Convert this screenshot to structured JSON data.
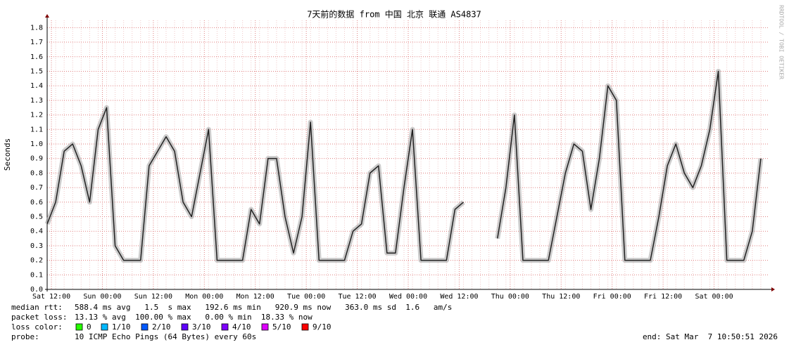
{
  "chart_data": {
    "type": "line",
    "title": "7天前的数据 from 中国 北京 联通 AS4837",
    "y_label": "Seconds",
    "watermark": "RRDTOOL / TOBI OETIKER",
    "xlim": [
      0,
      170
    ],
    "ylim": [
      0,
      1.85
    ],
    "yticks": [
      {
        "value": 0,
        "label": "0.0"
      },
      0.1,
      0.2,
      0.3,
      0.4,
      0.5,
      0.6,
      0.7,
      0.8,
      0.9,
      {
        "value": 1,
        "label": "1.0"
      },
      1.1,
      1.2,
      1.3,
      1.4,
      1.5,
      1.6,
      1.7,
      1.8
    ],
    "xticks": [
      {
        "value": 1,
        "label": "Sat 12:00"
      },
      {
        "value": 13,
        "label": "Sun 00:00"
      },
      {
        "value": 25,
        "label": "Sun 12:00"
      },
      {
        "value": 37,
        "label": "Mon 00:00"
      },
      {
        "value": 49,
        "label": "Mon 12:00"
      },
      {
        "value": 61,
        "label": "Tue 00:00"
      },
      {
        "value": 73,
        "label": "Tue 12:00"
      },
      {
        "value": 85,
        "label": "Wed 00:00"
      },
      {
        "value": 97,
        "label": "Wed 12:00"
      },
      {
        "value": 109,
        "label": "Thu 00:00"
      },
      {
        "value": 121,
        "label": "Thu 12:00"
      },
      {
        "value": 133,
        "label": "Fri 00:00"
      },
      {
        "value": 145,
        "label": "Fri 12:00"
      },
      {
        "value": 157,
        "label": "Sat 00:00"
      }
    ],
    "grid": true,
    "x": [
      0,
      2,
      4,
      6,
      8,
      10,
      12,
      14,
      16,
      18,
      20,
      22,
      24,
      26,
      28,
      30,
      32,
      34,
      36,
      38,
      40,
      42,
      44,
      46,
      48,
      50,
      52,
      54,
      56,
      58,
      60,
      62,
      64,
      66,
      68,
      70,
      72,
      74,
      76,
      78,
      80,
      82,
      84,
      86,
      88,
      90,
      92,
      94,
      96,
      98,
      100,
      102,
      104,
      106,
      108,
      110,
      112,
      114,
      116,
      118,
      120,
      122,
      124,
      126,
      128,
      130,
      132,
      134,
      136,
      138,
      140,
      142,
      144,
      146,
      148,
      150,
      152,
      154,
      156,
      158,
      160,
      162,
      164,
      166,
      168
    ],
    "series": [
      {
        "color": "#222222",
        "values": [
          0.45,
          0.6,
          0.95,
          1.0,
          0.85,
          0.6,
          1.1,
          1.25,
          0.3,
          0.2,
          0.2,
          0.2,
          0.85,
          0.95,
          1.05,
          0.95,
          0.6,
          0.5,
          0.8,
          1.1,
          0.2,
          0.2,
          0.2,
          0.2,
          0.55,
          0.45,
          0.9,
          0.9,
          0.5,
          0.25,
          0.5,
          1.15,
          0.2,
          0.2,
          0.2,
          0.2,
          0.4,
          0.45,
          0.8,
          0.85,
          0.25,
          0.25,
          0.7,
          1.1,
          0.2,
          0.2,
          0.2,
          0.2,
          0.55,
          0.6,
          null,
          null,
          null,
          0.35,
          0.7,
          1.2,
          0.2,
          0.2,
          0.2,
          0.2,
          0.5,
          0.8,
          1.0,
          0.95,
          0.55,
          0.9,
          1.4,
          1.3,
          0.2,
          0.2,
          0.2,
          0.2,
          0.5,
          0.85,
          1.0,
          0.8,
          0.7,
          0.85,
          1.1,
          1.5,
          0.2,
          0.2,
          0.2,
          0.4,
          0.9
        ]
      }
    ],
    "stats": [
      {
        "label": "median rtt:",
        "text": "588.4 ms avg   1.5  s max   192.6 ms min   920.9 ms now   363.0 ms sd  1.6   am/s"
      },
      {
        "label": "packet loss:",
        "text": "13.13 % avg  100.00 % max   0.00 % min  18.33 % now"
      }
    ],
    "loss_label": "loss color:",
    "loss_colors": [
      {
        "label": "0",
        "color": "#26ff00"
      },
      {
        "label": "1/10",
        "color": "#00b8ff"
      },
      {
        "label": "2/10",
        "color": "#0059ff"
      },
      {
        "label": "3/10",
        "color": "#5e00ff"
      },
      {
        "label": "4/10",
        "color": "#7e00ff"
      },
      {
        "label": "5/10",
        "color": "#dd00ff"
      },
      {
        "label": "9/10",
        "color": "#ff0000"
      }
    ],
    "probe_label": "probe:",
    "probe_text": "10 ICMP Echo Pings (64 Bytes) every 60s",
    "end_text": "end: Sat Mar  7 10:50:51 2026"
  }
}
